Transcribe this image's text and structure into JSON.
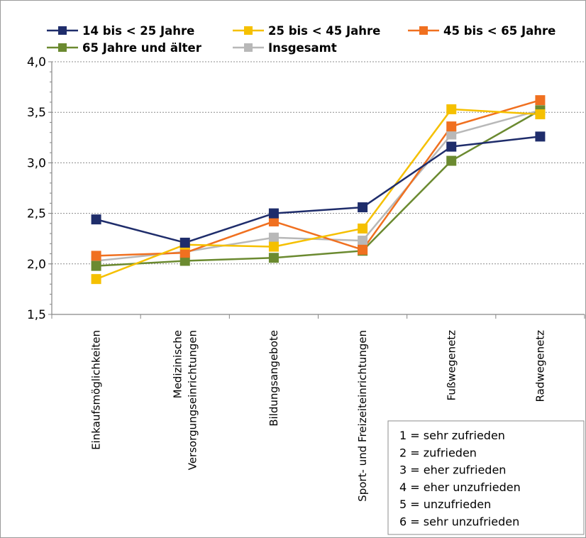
{
  "chart_data": {
    "type": "line",
    "title": "",
    "xlabel": "",
    "ylabel": "",
    "ylim": [
      1.5,
      4.0
    ],
    "yticks": [
      "1,5",
      "2,0",
      "2,5",
      "3,0",
      "3,5",
      "4,0"
    ],
    "ytick_values": [
      1.5,
      2.0,
      2.5,
      3.0,
      3.5,
      4.0
    ],
    "grid": true,
    "legend_position": "top",
    "categories": [
      [
        "Einkaufsmöglichkeiten"
      ],
      [
        "Medizinische",
        "Versorgungseinrichtungen"
      ],
      [
        "Bildungsangebote"
      ],
      [
        "Sport- und Freizeiteinrichtungen"
      ],
      [
        "Fußwegenetz"
      ],
      [
        "Radwegenetz"
      ]
    ],
    "series": [
      {
        "name": "14 bis < 25 Jahre",
        "color": "#1f2d6b",
        "values": [
          2.44,
          2.21,
          2.5,
          2.56,
          3.16,
          3.26
        ]
      },
      {
        "name": "25 bis < 45 Jahre",
        "color": "#f5c000",
        "values": [
          1.85,
          2.19,
          2.17,
          2.35,
          3.53,
          3.48
        ]
      },
      {
        "name": "45 bis < 65 Jahre",
        "color": "#f07020",
        "values": [
          2.08,
          2.11,
          2.42,
          2.14,
          3.36,
          3.62
        ]
      },
      {
        "name": "65 Jahre und älter",
        "color": "#6b8a30",
        "values": [
          1.98,
          2.03,
          2.06,
          2.13,
          3.02,
          3.52
        ]
      },
      {
        "name": "Insgesamt",
        "color": "#b8b8b8",
        "values": [
          2.03,
          2.12,
          2.26,
          2.23,
          3.28,
          3.52
        ]
      }
    ],
    "annotation": [
      "1 = sehr zufrieden",
      "2 = zufrieden",
      "3 = eher zufrieden",
      "4 = eher unzufrieden",
      "5 = unzufrieden",
      "6 = sehr unzufrieden"
    ]
  }
}
